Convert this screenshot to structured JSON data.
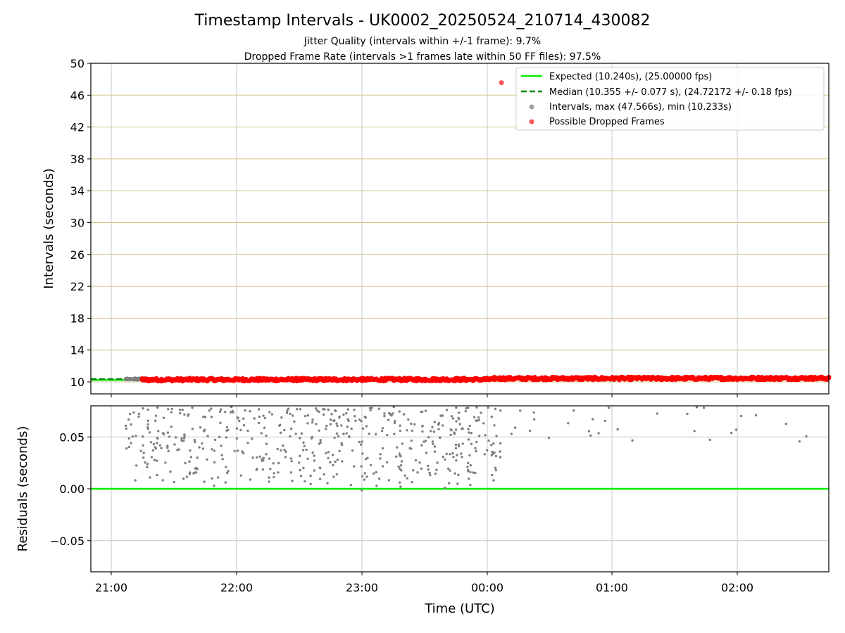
{
  "chart_data": {
    "type": "scatter",
    "title": "Timestamp Intervals - UK0002_20250524_210714_430082",
    "subtitles": [
      "Jitter Quality (intervals within +/-1 frame): 9.7%",
      "Dropped Frame Rate (intervals >1 frames late within 50 FF files): 97.5%"
    ],
    "xlabel": "Time (UTC)",
    "x_ticks": [
      "21:00",
      "22:00",
      "23:00",
      "00:00",
      "01:00",
      "02:00"
    ],
    "top_panel": {
      "ylabel": "Intervals (seconds)",
      "ylim": [
        8.5,
        50
      ],
      "y_ticks": [
        10,
        14,
        18,
        22,
        26,
        30,
        34,
        38,
        42,
        46,
        50
      ],
      "expected_interval": 10.24,
      "median_interval": 10.355,
      "max_interval": 47.566,
      "min_interval": 10.233,
      "outlier_point": {
        "time": "00:07",
        "value": 47.566
      },
      "legend_position": "top-right",
      "legend": [
        {
          "name": "Expected (10.240s), (25.00000 fps)",
          "color": "#00ee00",
          "style": "line"
        },
        {
          "name": "Median (10.355 +/- 0.077 s), (24.72172 +/- 0.18 fps)",
          "color": "#008800",
          "style": "dashed"
        },
        {
          "name": "Intervals, max (47.566s), min (10.233s)",
          "color": "#a0a0a0",
          "style": "dot"
        },
        {
          "name": "Possible Dropped Frames",
          "color": "#ff5555",
          "style": "dot"
        }
      ]
    },
    "bottom_panel": {
      "ylabel": "Residuals (seconds)",
      "ylim": [
        -0.08,
        0.08
      ],
      "y_ticks": [
        "−0.05",
        "0.00",
        "0.05"
      ],
      "zero_line_color": "#00ee00"
    },
    "colors": {
      "expected": "#00ee00",
      "median": "#008800",
      "intervals": "#7f7f7f",
      "dropped": "#ff0000",
      "hgrid_top": "#d4c48a",
      "grid": "#c8c8c8"
    }
  }
}
